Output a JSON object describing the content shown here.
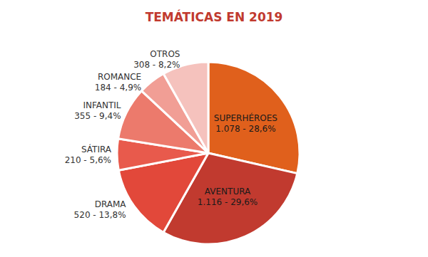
{
  "chart_data": {
    "type": "pie",
    "title": "TEMÁTICAS EN 2019",
    "categories": [
      "SUPERHÉROES",
      "AVENTURA",
      "DRAMA",
      "SÁTIRA",
      "INFANTIL",
      "ROMANCE",
      "OTROS"
    ],
    "values": [
      1078,
      1116,
      520,
      210,
      355,
      184,
      308
    ],
    "value_labels": [
      "1.078 - 28,6%",
      "1.116 - 29,6%",
      "520 - 13,8%",
      "210 - 5,6%",
      "355 - 9,4%",
      "184 - 4,9%",
      "308 - 8,2%"
    ],
    "colors": [
      "#e0601c",
      "#c13a2f",
      "#e2483a",
      "#e85a4c",
      "#ec7a6c",
      "#f19e95",
      "#f5c2bd"
    ],
    "data_labels": true
  }
}
